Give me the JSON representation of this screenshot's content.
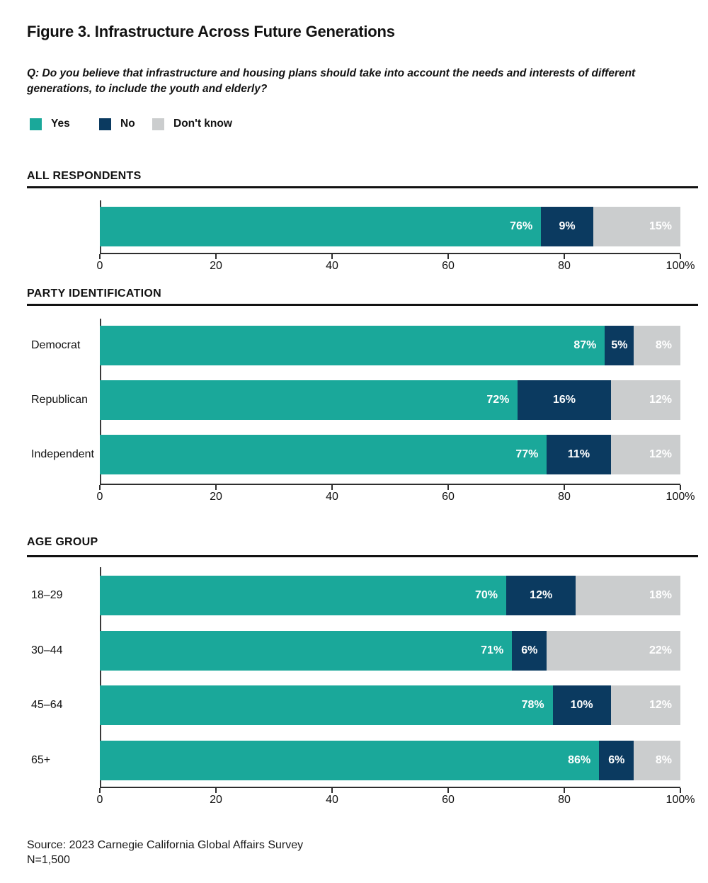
{
  "page": {
    "title": "Figure 3. Infrastructure Across Future Generations",
    "question": "Q: Do you believe that infrastructure and housing plans should take into account the needs and interests of different generations, to include the youth and elderly?",
    "source_line1": "Source: 2023 Carnegie California Global Affairs Survey",
    "source_line2": "N=1,500"
  },
  "colors": {
    "yes": "#1AA89A",
    "no": "#0B3A60",
    "dont_know": "#CBCDCE"
  },
  "legend": [
    {
      "label": "Yes"
    },
    {
      "label": "No"
    },
    {
      "label": "Don't know"
    }
  ],
  "axis": {
    "ticks": [
      "0",
      "20",
      "40",
      "60",
      "80",
      "100%"
    ]
  },
  "sections": [
    {
      "header": "ALL RESPONDENTS",
      "rows": [
        {
          "label": "",
          "yes": {
            "value": 76,
            "label": "76%"
          },
          "no": {
            "value": 9,
            "label": "9%"
          },
          "dk": {
            "value": 15,
            "label": "15%"
          }
        }
      ]
    },
    {
      "header": "PARTY IDENTIFICATION",
      "rows": [
        {
          "label": "Democrat",
          "yes": {
            "value": 87,
            "label": "87%"
          },
          "no": {
            "value": 5,
            "label": "5%"
          },
          "dk": {
            "value": 8,
            "label": "8%"
          }
        },
        {
          "label": "Republican",
          "yes": {
            "value": 72,
            "label": "72%"
          },
          "no": {
            "value": 16,
            "label": "16%"
          },
          "dk": {
            "value": 12,
            "label": "12%"
          }
        },
        {
          "label": "Independent",
          "yes": {
            "value": 77,
            "label": "77%"
          },
          "no": {
            "value": 11,
            "label": "11%"
          },
          "dk": {
            "value": 12,
            "label": "12%"
          }
        }
      ]
    },
    {
      "header": "AGE GROUP",
      "rows": [
        {
          "label": "18–29",
          "yes": {
            "value": 70,
            "label": "70%"
          },
          "no": {
            "value": 12,
            "label": "12%"
          },
          "dk": {
            "value": 18,
            "label": "18%"
          }
        },
        {
          "label": "30–44",
          "yes": {
            "value": 71,
            "label": "71%"
          },
          "no": {
            "value": 6,
            "label": "6%"
          },
          "dk": {
            "value": 22,
            "label": "22%"
          }
        },
        {
          "label": "45–64",
          "yes": {
            "value": 78,
            "label": "78%"
          },
          "no": {
            "value": 10,
            "label": "10%"
          },
          "dk": {
            "value": 12,
            "label": "12%"
          }
        },
        {
          "label": "65+",
          "yes": {
            "value": 86,
            "label": "86%"
          },
          "no": {
            "value": 6,
            "label": "6%"
          },
          "dk": {
            "value": 8,
            "label": "8%"
          }
        }
      ]
    }
  ],
  "chart_data": [
    {
      "type": "bar",
      "stacked": true,
      "orientation": "horizontal",
      "title": "ALL RESPONDENTS",
      "categories": [
        "All respondents"
      ],
      "series": [
        {
          "name": "Yes",
          "values": [
            76
          ]
        },
        {
          "name": "No",
          "values": [
            9
          ]
        },
        {
          "name": "Don't know",
          "values": [
            15
          ]
        }
      ],
      "xlim": [
        0,
        100
      ],
      "tick_labels": [
        "0",
        "20",
        "40",
        "60",
        "80",
        "100%"
      ],
      "legend_position": "top",
      "grid": false
    },
    {
      "type": "bar",
      "stacked": true,
      "orientation": "horizontal",
      "title": "PARTY IDENTIFICATION",
      "categories": [
        "Democrat",
        "Republican",
        "Independent"
      ],
      "series": [
        {
          "name": "Yes",
          "values": [
            87,
            72,
            77
          ]
        },
        {
          "name": "No",
          "values": [
            5,
            16,
            11
          ]
        },
        {
          "name": "Don't know",
          "values": [
            8,
            12,
            12
          ]
        }
      ],
      "xlim": [
        0,
        100
      ],
      "tick_labels": [
        "0",
        "20",
        "40",
        "60",
        "80",
        "100%"
      ],
      "legend_position": "top",
      "grid": false
    },
    {
      "type": "bar",
      "stacked": true,
      "orientation": "horizontal",
      "title": "AGE GROUP",
      "categories": [
        "18–29",
        "30–44",
        "45–64",
        "65+"
      ],
      "series": [
        {
          "name": "Yes",
          "values": [
            70,
            71,
            78,
            86
          ]
        },
        {
          "name": "No",
          "values": [
            12,
            6,
            10,
            6
          ]
        },
        {
          "name": "Don't know",
          "values": [
            18,
            22,
            12,
            8
          ]
        }
      ],
      "xlim": [
        0,
        100
      ],
      "tick_labels": [
        "0",
        "20",
        "40",
        "60",
        "80",
        "100%"
      ],
      "legend_position": "top",
      "grid": false
    }
  ]
}
